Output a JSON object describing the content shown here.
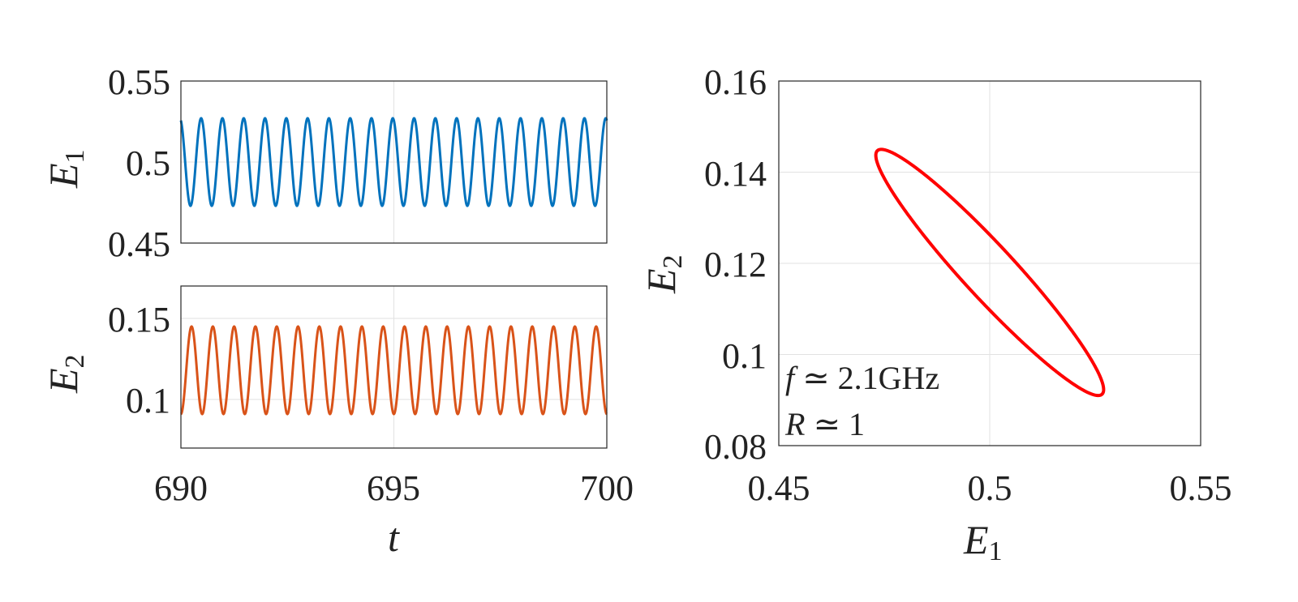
{
  "chart_data": [
    {
      "type": "line",
      "ylabel": "E",
      "ylabel_sub": "1",
      "xlim": [
        690,
        700
      ],
      "ylim": [
        0.45,
        0.55
      ],
      "yticks": [
        "0.45",
        "0.5",
        "0.55"
      ],
      "grid": true,
      "series": [
        {
          "color": "#0072BD",
          "mean": 0.5,
          "amplitude": 0.027,
          "period": 0.5,
          "phase_start": 0.3,
          "x_start": 690,
          "x_end": 700
        }
      ]
    },
    {
      "type": "line",
      "xlabel": "t",
      "ylabel": "E",
      "ylabel_sub": "2",
      "xlim": [
        690,
        700
      ],
      "ylim": [
        0.07,
        0.17
      ],
      "xticks": [
        "690",
        "695",
        "700"
      ],
      "yticks": [
        "0.1",
        "0.15"
      ],
      "grid": true,
      "series": [
        {
          "color": "#D95319",
          "mean": 0.118,
          "amplitude": 0.027,
          "period": 0.5,
          "phase_start": 0.75,
          "x_start": 690,
          "x_end": 700
        }
      ]
    },
    {
      "type": "line",
      "xlabel": "E",
      "xlabel_sub": "1",
      "ylabel": "E",
      "ylabel_sub": "2",
      "xlim": [
        0.45,
        0.55
      ],
      "ylim": [
        0.08,
        0.16
      ],
      "xticks": [
        "0.45",
        "0.5",
        "0.55"
      ],
      "yticks": [
        "0.08",
        "0.1",
        "0.12",
        "0.14",
        "0.16"
      ],
      "grid": true,
      "series": [
        {
          "color": "#FF0000",
          "shape": "closed-orbit",
          "x_center": 0.5,
          "y_center": 0.118,
          "x_amplitude": 0.027,
          "y_amplitude": 0.027,
          "phase_shift": 2.83
        }
      ],
      "annotations": [
        {
          "text": "f ≃ 2.1GHz",
          "parts": [
            "f",
            " ≃ 2.1GHz"
          ]
        },
        {
          "text": "R ≃ 1",
          "parts": [
            "R",
            " ≃ 1"
          ]
        }
      ]
    }
  ]
}
